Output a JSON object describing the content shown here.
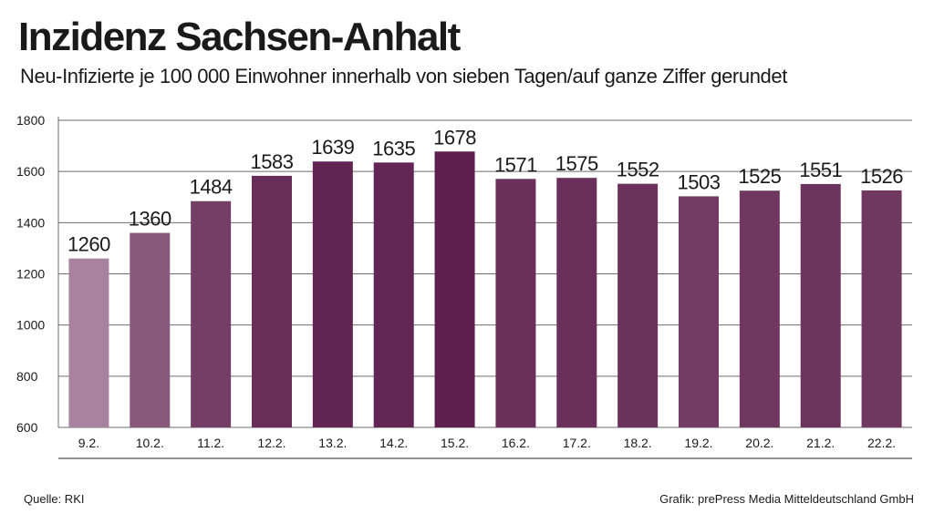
{
  "header": {
    "title": "Inzidenz Sachsen-Anhalt",
    "subtitle": "Neu-Infizierte je 100 000 Einwohner innerhalb von sieben Tagen/auf ganze Ziffer gerundet"
  },
  "footer": {
    "source": "Quelle: RKI",
    "credit": "Grafik: prePress Media Mitteldeutschland GmbH"
  },
  "chart_data": {
    "type": "bar",
    "title": "Inzidenz Sachsen-Anhalt",
    "xlabel": "",
    "ylabel": "",
    "categories": [
      "9.2.",
      "10.2.",
      "11.2.",
      "12.2.",
      "13.2.",
      "14.2.",
      "15.2.",
      "16.2.",
      "17.2.",
      "18.2.",
      "19.2.",
      "20.2.",
      "21.2.",
      "22.2."
    ],
    "values": [
      1260,
      1360,
      1484,
      1583,
      1639,
      1635,
      1678,
      1571,
      1575,
      1552,
      1503,
      1525,
      1551,
      1526
    ],
    "ylim": [
      600,
      1800
    ],
    "yticks": [
      600,
      800,
      1000,
      1200,
      1400,
      1600,
      1800
    ],
    "grid": true,
    "legend": "none",
    "colors": {
      "low": "#a8839f",
      "high": "#5e1f4e",
      "grid": "#6e6e6e",
      "text": "#1a1a1a"
    }
  }
}
